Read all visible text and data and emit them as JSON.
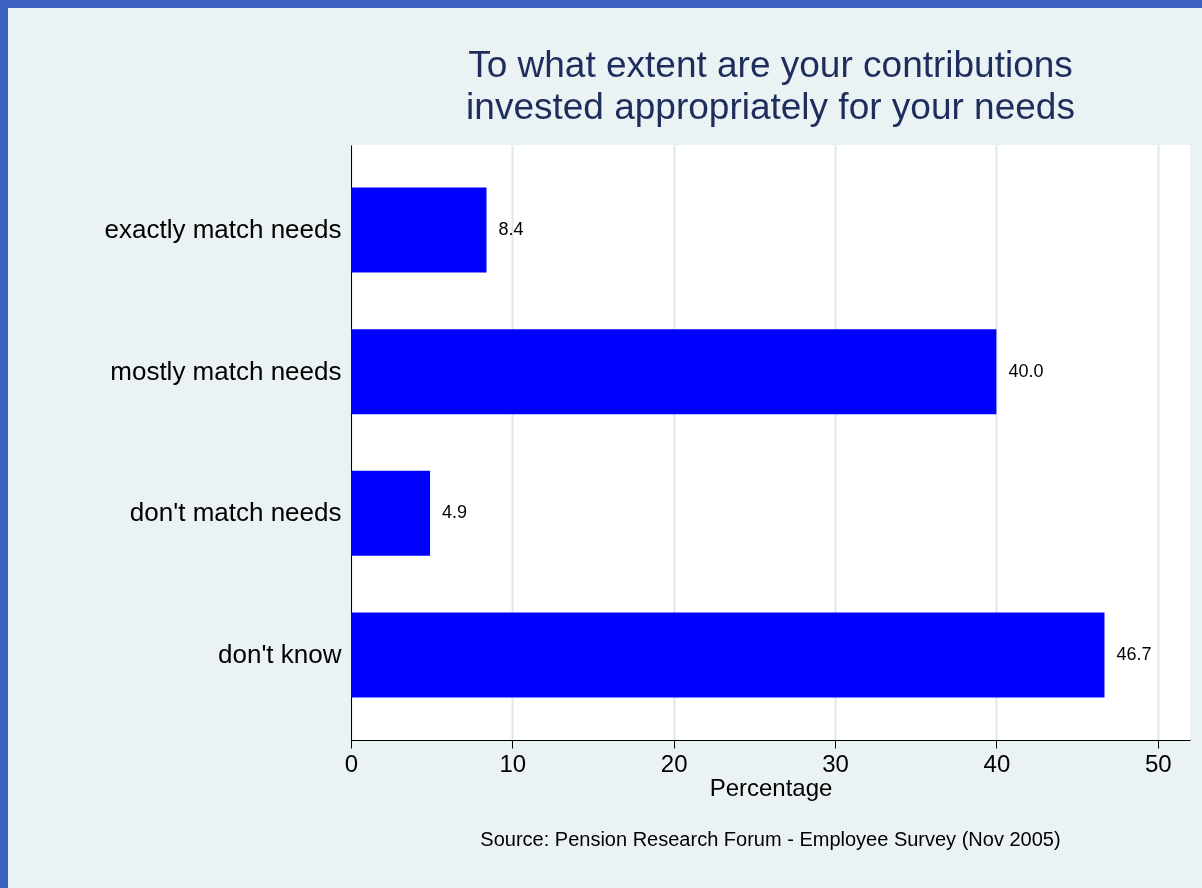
{
  "chart_data": {
    "type": "bar",
    "orientation": "horizontal",
    "title": "To what extent are your contributions\ninvested appropriately for your needs",
    "categories": [
      "exactly match needs",
      "mostly match needs",
      "don't match needs",
      "don't know"
    ],
    "values": [
      8.4,
      40.0,
      4.9,
      46.7
    ],
    "color": "#0000ff",
    "value_labels": [
      "8.4",
      "40.0",
      "4.9",
      "46.7"
    ],
    "xlabel": "Percentage",
    "xlim": [
      0,
      52
    ],
    "xticks": [
      0,
      10,
      20,
      30,
      40,
      50
    ],
    "grid": "x",
    "annotations": [
      "Source: Pension Research Forum - Employee Survey (Nov 2005)"
    ]
  }
}
